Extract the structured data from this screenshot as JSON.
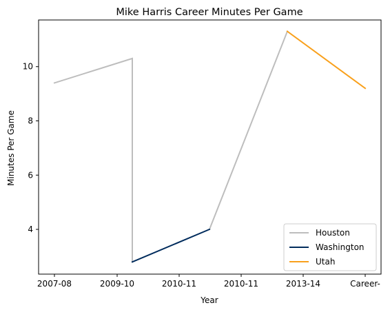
{
  "chart_data": {
    "type": "line",
    "title": "Mike Harris  Career Minutes Per Game",
    "xlabel": "Year",
    "ylabel": "Minutes Per Game",
    "x_tick_labels": [
      "2007-08",
      "2009-10",
      "2010-11",
      "2010-11",
      "2013-14",
      "Career-"
    ],
    "y_ticks": [
      4,
      6,
      8,
      10
    ],
    "ylim": [
      2.35,
      11.72
    ],
    "grid": false,
    "legend_position": "lower-right",
    "series": [
      {
        "name": "Houston",
        "color": "#bdbdbd",
        "segments": [
          [
            [
              0,
              9.4
            ],
            [
              1,
              10.3
            ],
            [
              1,
              2.8
            ]
          ],
          [
            [
              2,
              4.0
            ],
            [
              3,
              11.3
            ]
          ]
        ]
      },
      {
        "name": "Washington",
        "color": "#002b5c",
        "segments": [
          [
            [
              1,
              2.8
            ],
            [
              2,
              4.0
            ]
          ]
        ]
      },
      {
        "name": "Utah",
        "color": "#f9a01b",
        "segments": [
          [
            [
              3,
              11.3
            ],
            [
              4,
              9.2
            ]
          ]
        ]
      }
    ]
  }
}
